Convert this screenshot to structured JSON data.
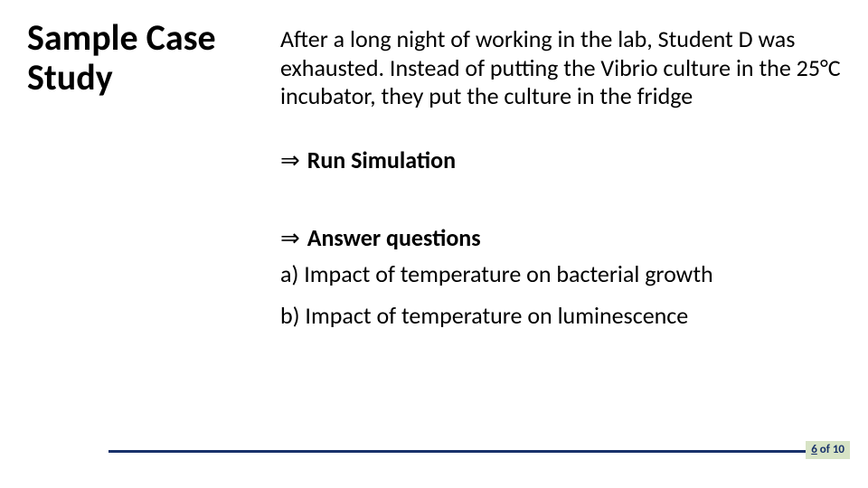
{
  "title": "Sample Case Study",
  "paragraph": "After a long night of working in the lab, Student D was exhausted. Instead of putting the Vibrio culture in the 25°C incubator, they put the culture in the fridge",
  "action1": "Run Simulation",
  "action2": "Answer questions",
  "sub_a": "a) Impact of temperature on bacterial growth",
  "sub_b": "b) Impact of temperature on luminescence",
  "arrow_glyph": "⇒",
  "page": {
    "current": "6",
    "separator": " of ",
    "total": "10"
  },
  "colors": {
    "footer_line": "#18316a",
    "page_bg": "#d7e3c5",
    "page_text": "#18316a"
  }
}
